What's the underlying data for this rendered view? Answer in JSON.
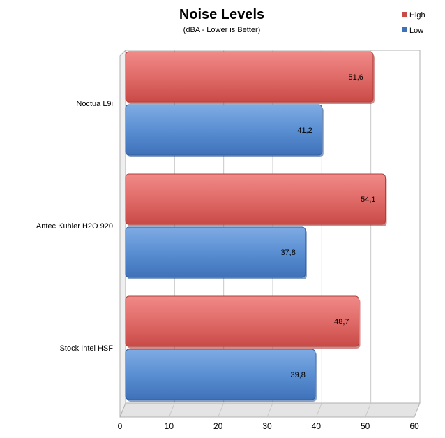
{
  "chart_data": {
    "type": "bar",
    "orientation": "horizontal",
    "title": "Noise Levels",
    "subtitle": "(dBA - Lower is Better)",
    "categories": [
      "Noctua L9i",
      "Antec Kuhler H2O 920",
      "Stock Intel HSF"
    ],
    "series": [
      {
        "name": "High",
        "values": [
          51.6,
          54.1,
          48.7
        ],
        "value_labels": [
          "51,6",
          "54,1",
          "48,7"
        ],
        "color": "#d9534f"
      },
      {
        "name": "Low",
        "values": [
          41.2,
          37.8,
          39.8
        ],
        "value_labels": [
          "41,2",
          "37,8",
          "39,8"
        ],
        "color": "#4f81c7"
      }
    ],
    "xlim": [
      0,
      60
    ],
    "xticks": [
      0,
      10,
      20,
      30,
      40,
      50,
      60
    ],
    "grid": true,
    "legend_position": "top-right"
  }
}
